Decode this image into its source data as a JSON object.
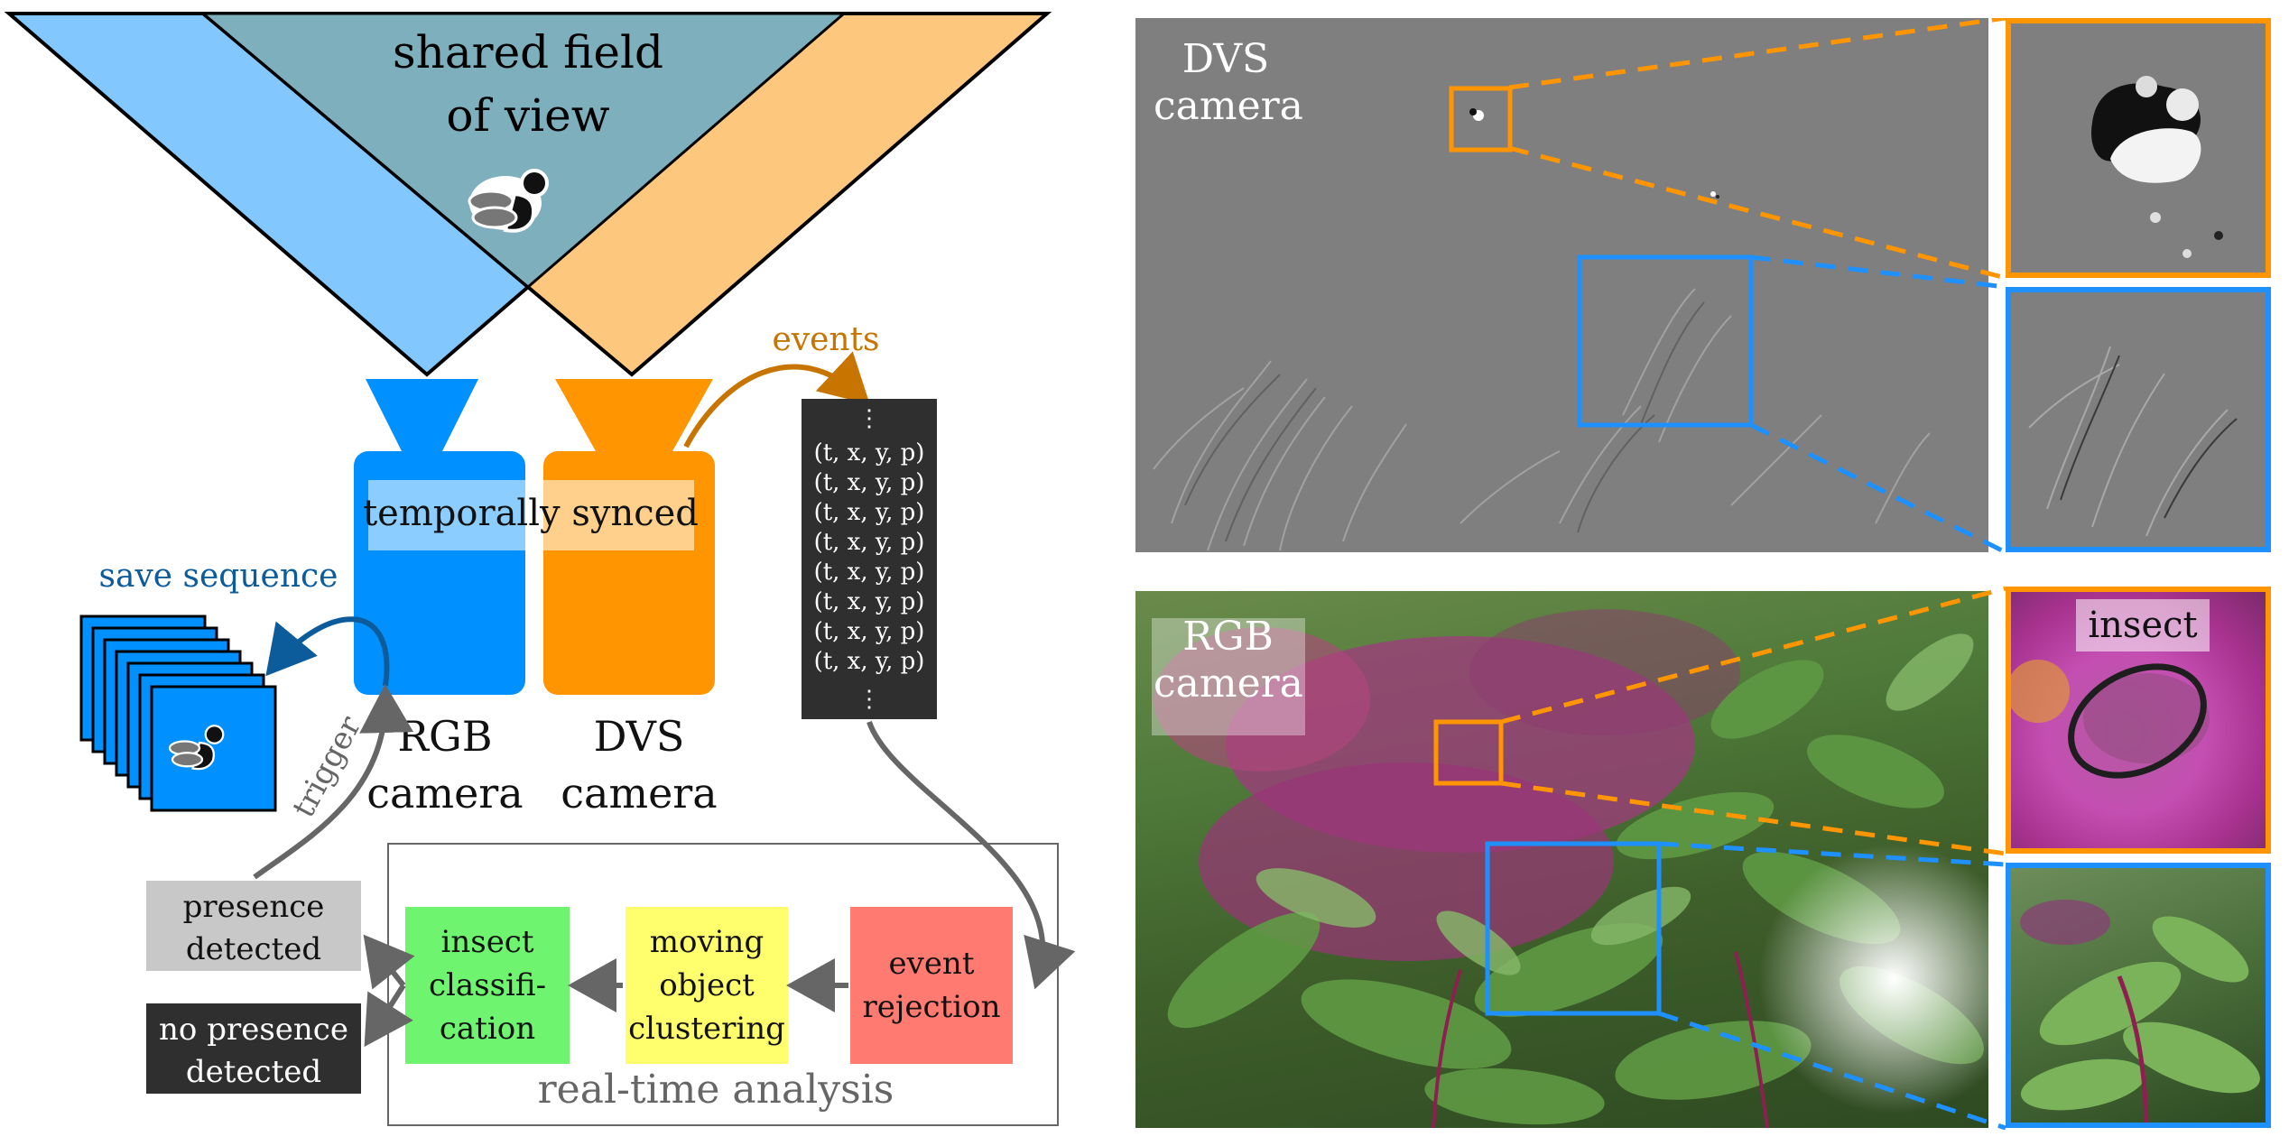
{
  "fov": {
    "line1": "shared field",
    "line2": "of view"
  },
  "sync_label": "temporally synced",
  "save_sequence": "save sequence",
  "events_label": "events",
  "event_stream": {
    "top_dots": "⋮",
    "rows": [
      "(t, x, y, p)",
      "(t, x, y, p)",
      "(t, x, y, p)",
      "(t, x, y, p)",
      "(t, x, y, p)",
      "(t, x, y, p)",
      "(t, x, y, p)",
      "(t, x, y, p)"
    ],
    "bottom_dots": "⋮"
  },
  "trigger_label": "trigger",
  "rgb_camera": {
    "line1": "RGB",
    "line2": "camera"
  },
  "dvs_camera": {
    "line1": "DVS",
    "line2": "camera"
  },
  "outputs": {
    "presence": {
      "line1": "presence",
      "line2": "detected"
    },
    "no_presence": {
      "line1": "no presence",
      "line2": "detected"
    }
  },
  "pipeline": {
    "classification": {
      "line1": "insect",
      "line2": "classifi-",
      "line3": "cation"
    },
    "clustering": {
      "line1": "moving",
      "line2": "object",
      "line3": "clustering"
    },
    "rejection": {
      "line1": "event",
      "line2": "rejection"
    },
    "caption": "real-time analysis"
  },
  "dvs_panel": {
    "line1": "DVS",
    "line2": "camera"
  },
  "rgb_panel": {
    "line1": "RGB",
    "line2": "camera"
  },
  "insect_label": "insect",
  "colors": {
    "rgb_blue": "#0090ff",
    "fov_blue": "#82c8ff",
    "dvs_orange": "#ff9500",
    "fov_orange": "#fdc77e",
    "shared": "#7dafbd",
    "classification": "#6ff46f",
    "clustering": "#ffff6e",
    "rejection": "#ff7a70",
    "presence_bg": "#c8c8c8",
    "no_presence_bg": "#2f2f2f",
    "save_label": "#0c5c9c",
    "events_label": "#c77400"
  }
}
